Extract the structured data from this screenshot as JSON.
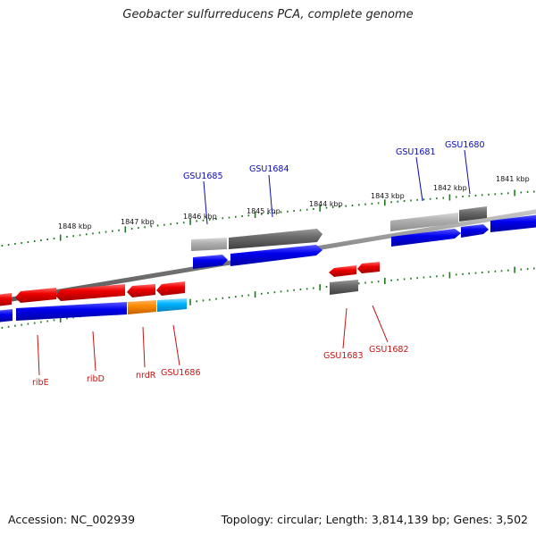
{
  "title": "Geobacter sulfurreducens PCA, complete genome",
  "footer": {
    "accession": "Accession: NC_002939",
    "topology": "Topology: circular; Length: 3,814,139 bp; Genes: 3,502"
  },
  "scale_labels": [
    "1848 kbp",
    "1847 kbp",
    "1846 kbp",
    "1845 kbp",
    "1844 kbp",
    "1843 kbp",
    "1842 kbp",
    "1841 kbp"
  ],
  "top_gene_labels": [
    "GSU1685",
    "GSU1684",
    "GSU1681",
    "GSU1680"
  ],
  "bottom_gene_labels": [
    "ribE",
    "ribD",
    "nrdR",
    "GSU1686",
    "GSU1683",
    "GSU1682"
  ],
  "colors": {
    "backbone": "#8a8a8a",
    "tick": "#1f7a1f",
    "cds": "#0000ee",
    "gene_red": "#ee0000",
    "gene_gray": "#707070",
    "gene_lightgray": "#b4b4b4",
    "orange": "#ff8c00",
    "cyan": "#00b4ff"
  }
}
